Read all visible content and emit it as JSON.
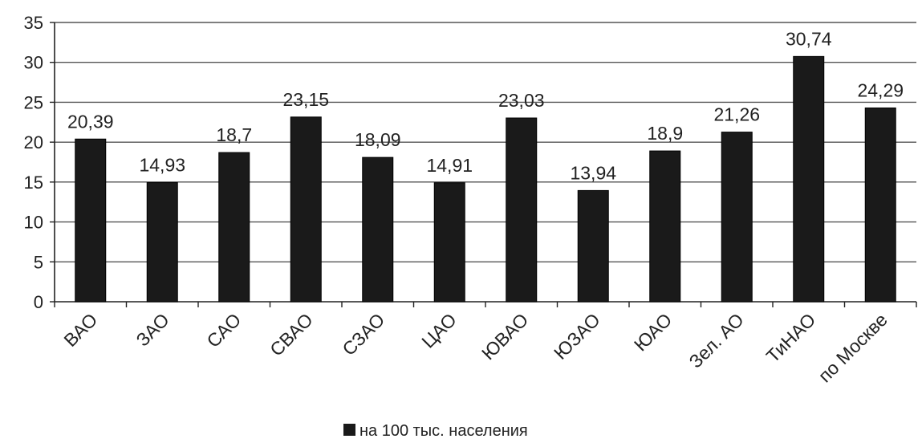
{
  "chart_data": {
    "type": "bar",
    "categories": [
      "ВАО",
      "ЗАО",
      "САО",
      "СВАО",
      "СЗАО",
      "ЦАО",
      "ЮВАО",
      "ЮЗАО",
      "ЮАО",
      "Зел. АО",
      "ТиНАО",
      "по Москве"
    ],
    "series": [
      {
        "name": "на 100 тыс. населения",
        "values": [
          20.39,
          14.93,
          18.7,
          23.15,
          18.09,
          14.91,
          23.03,
          13.94,
          18.9,
          21.26,
          30.74,
          24.29
        ]
      }
    ],
    "value_labels": [
      "20,39",
      "14,93",
      "18,7",
      "23,15",
      "18,09",
      "14,91",
      "23,03",
      "13,94",
      "18,9",
      "21,26",
      "30,74",
      "24,29"
    ],
    "y_ticks": [
      0,
      5,
      10,
      15,
      20,
      25,
      30,
      35
    ],
    "ylim": [
      0,
      35
    ],
    "title": "",
    "xlabel": "",
    "ylabel": "",
    "grid": true,
    "legend_position": "bottom",
    "bar_color": "#1a1a1a",
    "grid_color": "#555555"
  }
}
